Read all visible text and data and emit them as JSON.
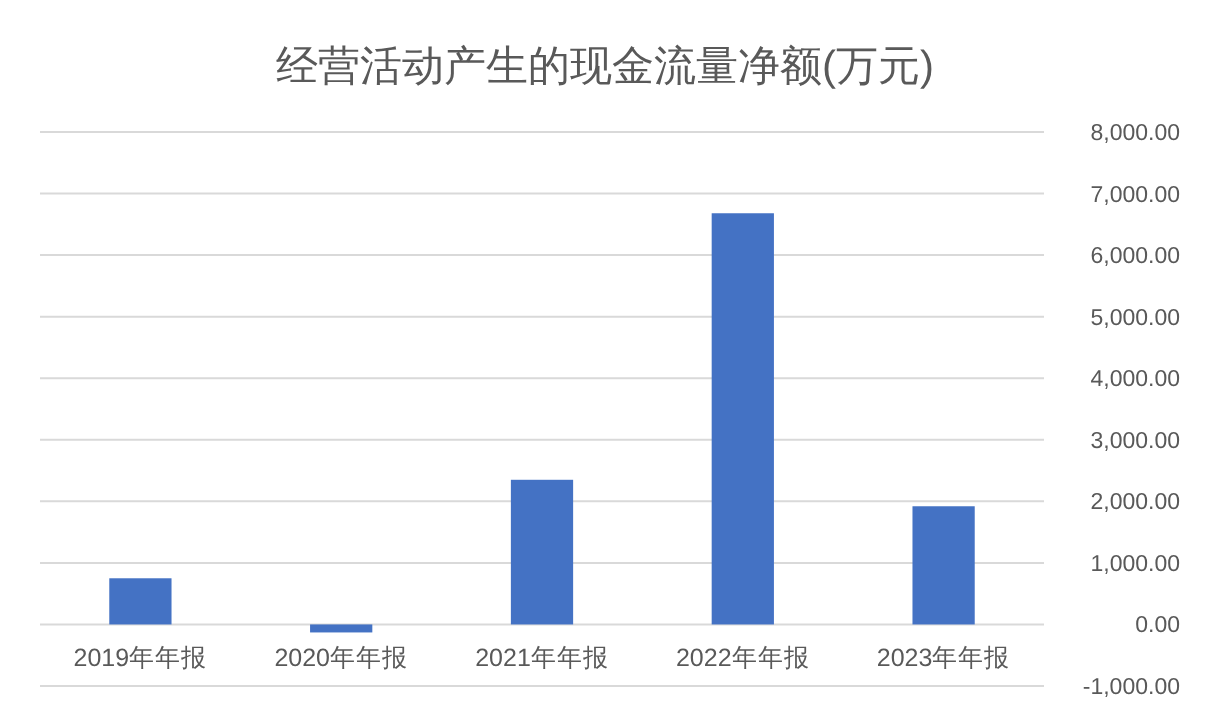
{
  "chart_data": {
    "type": "bar",
    "title": "经营活动产生的现金流量净额(万元)",
    "categories": [
      "2019年年报",
      "2020年年报",
      "2021年年报",
      "2022年年报",
      "2023年年报"
    ],
    "series": [
      {
        "color": "#4472c4",
        "values": [
          750,
          -130,
          2350,
          6680,
          1920
        ]
      }
    ],
    "ylim": [
      -1000,
      8000
    ],
    "yticks": [
      {
        "value": -1000,
        "label": "-1,000.00"
      },
      {
        "value": 0,
        "label": "0.00"
      },
      {
        "value": 1000,
        "label": "1,000.00"
      },
      {
        "value": 2000,
        "label": "2,000.00"
      },
      {
        "value": 3000,
        "label": "3,000.00"
      },
      {
        "value": 4000,
        "label": "4,000.00"
      },
      {
        "value": 5000,
        "label": "5,000.00"
      },
      {
        "value": 6000,
        "label": "6,000.00"
      },
      {
        "value": 7000,
        "label": "7,000.00"
      },
      {
        "value": 8000,
        "label": "8,000.00"
      }
    ],
    "grid": "y"
  }
}
